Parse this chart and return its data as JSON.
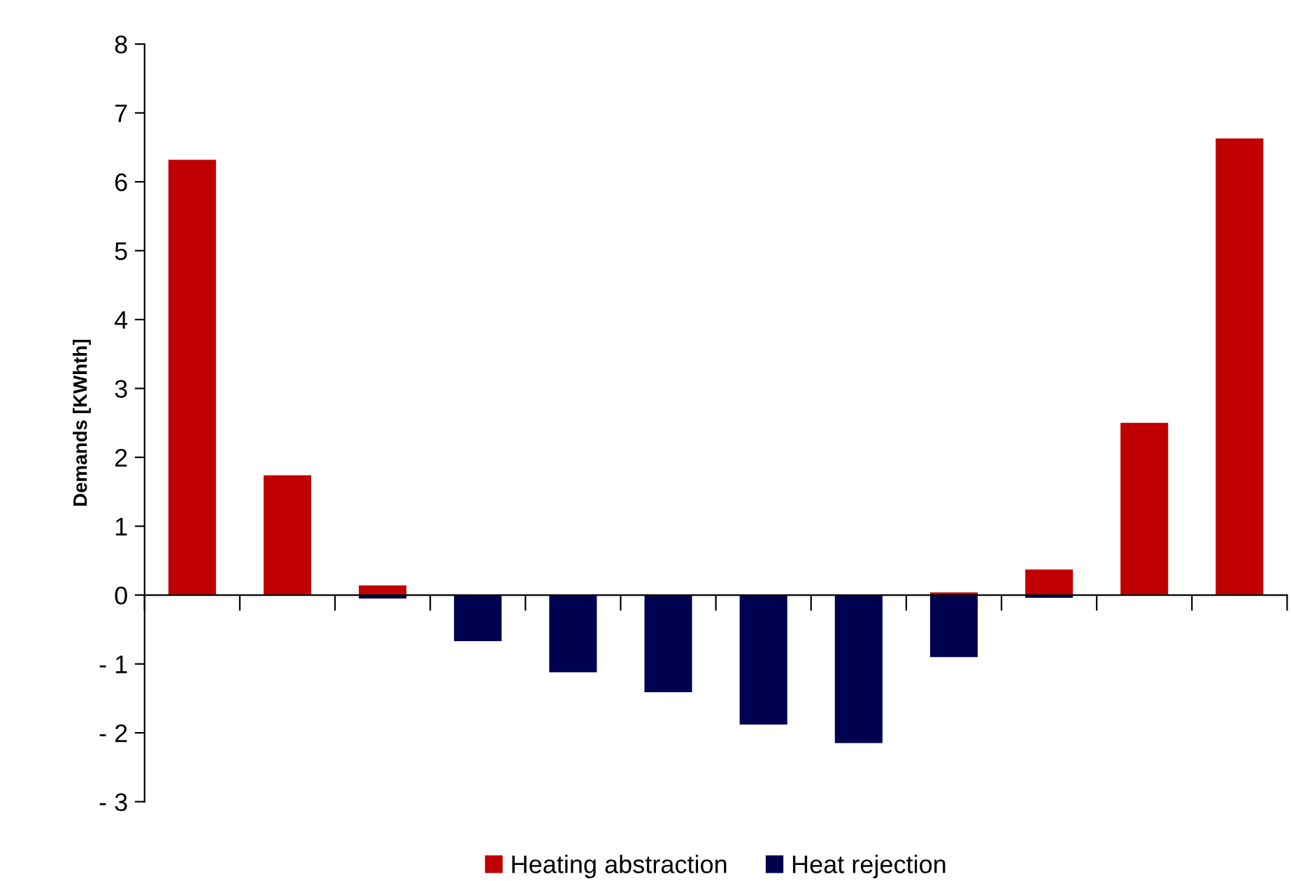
{
  "chart_data": {
    "type": "bar",
    "ylabel": "Demands [KWhth]",
    "categories": [
      null,
      null,
      null,
      null,
      null,
      null,
      null,
      null,
      null,
      null,
      null,
      null
    ],
    "series": [
      {
        "name": "Heating abstraction",
        "color": "#c00000",
        "values": [
          6.32,
          1.74,
          0.14,
          0,
          0,
          0,
          0,
          0,
          0.04,
          0.37,
          2.5,
          6.63
        ]
      },
      {
        "name": "Heat rejection",
        "color": "#000050",
        "values": [
          0,
          0,
          -0.05,
          -0.67,
          -1.12,
          -1.41,
          -1.88,
          -2.15,
          -0.9,
          -0.04,
          0,
          0
        ]
      }
    ],
    "ylim": [
      -3,
      8
    ],
    "yticks": [
      {
        "value": -3,
        "label": "- 3"
      },
      {
        "value": -2,
        "label": "- 2"
      },
      {
        "value": -1,
        "label": "- 1"
      },
      0,
      1,
      2,
      3,
      4,
      5,
      6,
      7,
      8
    ],
    "legend": "bottom"
  }
}
